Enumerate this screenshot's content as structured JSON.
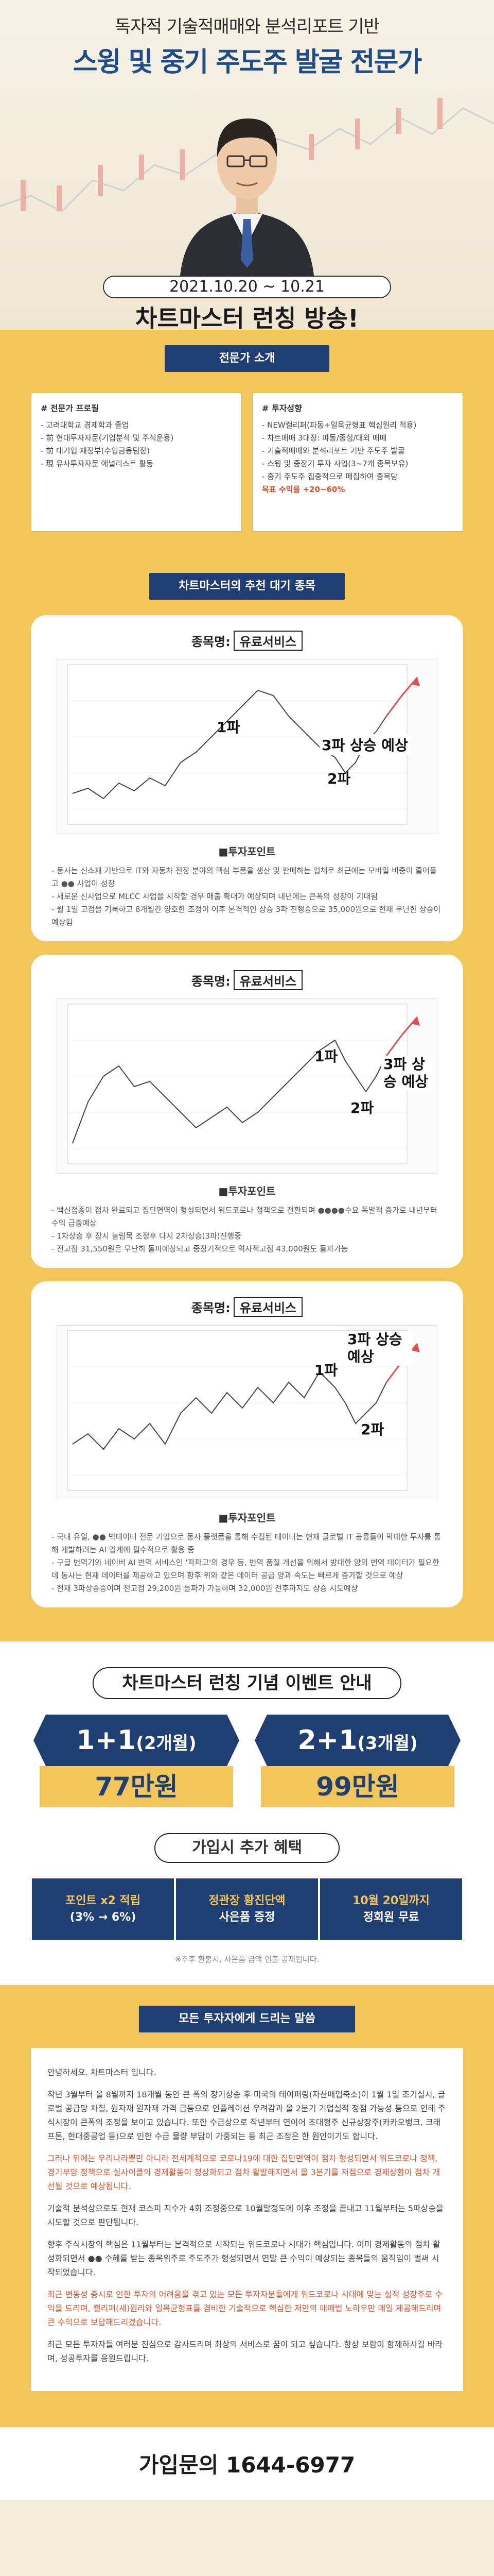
{
  "hero": {
    "headline1": "독자적 기술적매매와 분석리포트 기반",
    "headline2": "스윙 및 중기 주도주 발굴 전문가",
    "date_range": "2021.10.20 ~ 10.21",
    "subtitle": "차트마스터 런칭 방송!"
  },
  "profile": {
    "section_label": "전문가 소개",
    "left_title": "# 전문가 프로필",
    "left_items": [
      "- 고려대학교 경제학과 졸업",
      "- 前 현대투자자문(기업분석 및 주식운용)",
      "- 前 대기업 재정부(수입금융팀장)",
      "- 現 유사투자자문 애널리스트 활동"
    ],
    "right_title": "# 투자성향",
    "right_items": [
      "- NEW캘리퍼(파동+일목균형표 핵심원리 적용)",
      "- 차트매매 3대장: 파동/종심/대외 매매",
      "- 기술적매매와 분석리포트 기반 주도주 발굴",
      "- 스윙 및 중장기 투자 사업(3~7개 종목보유)",
      "- 중기 주도주 집중적으로 매집하여 종목당",
      "목표 수익률 +20~60%"
    ]
  },
  "recommend": {
    "section_label": "차트마스터의 추천 대기 종목",
    "cards": [
      {
        "tag_prefix": "종목명:",
        "tag_value": "유료서비스",
        "label_1": "1파",
        "label_2": "2파",
        "label_3": "3파 상승 예상",
        "point_title": "■투자포인트",
        "points": [
          "- 동사는 신소재 기반으로 IT와 자동차 전장 분야의 핵심 부품을 생산 및 판매하는 업체로 최근에는 모바일 비중이 줄어들고 ●● 사업이 성장",
          "- 새로운 신사업으로 MLCC 사업을 시작할 경우 매출 확대가 예상되며 내년에는 큰폭의 성장이 기대됨",
          "- 월 1일 고점을 기록하고 8개월간 양호한 조정이 이후 본격적인 상승 3파 진행중으로 35,000원으로 현재 무난한 상승이 예상됨"
        ]
      },
      {
        "tag_prefix": "종목명:",
        "tag_value": "유료서비스",
        "label_1": "1파",
        "label_2": "2파",
        "label_3": "3파 상승 예상",
        "point_title": "■투자포인트",
        "points": [
          "- 백신접종이 점차 완료되고 집단면역이 형성되면서 위드코로나 정책으로 전환되며 ●●●●수요 폭발적 증가로 내년부터 수익 급증예상",
          "- 1차상승 후 장시 눌림목 조정후 다시 2차상승(3파)진행중",
          "- 전고점 31,550원은 무난히 돌파예상되고 중장기적으로 역사적고점 43,000원도 돌파가능"
        ]
      },
      {
        "tag_prefix": "종목명:",
        "tag_value": "유료서비스",
        "label_1": "1파",
        "label_2": "2파",
        "label_3": "3파 상승 예상",
        "point_title": "■투자포인트",
        "points": [
          "- 국내 유일, ●● 빅데이터 전문 기업으로 동사 플랫폼을 통해 수집된 데이터는 현재 글로벌 IT 공룡들이 막대한 투자를 통해 개발하려는 AI 업계에 필수적으로 활용 중",
          "- 구글 번역기와 네이버 AI 번역 서비스인 '파파고'의 경우 등, 번역 품질 개선을 위해서 방대한 양의 번역 데이터가 필요한데 동사는 현재 데이터를 제공하고 있으며 향후 위와 같은 데이터 공급 양과 속도는 빠르게 증가할 것으로 예상",
          "- 현재 3파상승중이며 전고점 29,200원 돌파가 가능하며 32,000원 전후까지도 상승 시도예상"
        ]
      }
    ]
  },
  "event": {
    "title": "차트마스터 런칭 기념 이벤트 안내",
    "offers": [
      {
        "plan": "1+1",
        "period": "(2개월)",
        "price": "77만원"
      },
      {
        "plan": "2+1",
        "period": "(3개월)",
        "price": "99만원"
      }
    ],
    "benefit_title": "가입시 추가 혜택",
    "benefits": [
      {
        "line1": "포인트 x2 적립",
        "line2": "(3% → 6%)"
      },
      {
        "line1": "정관장 황진단액",
        "line2": "사은품 증정"
      },
      {
        "line1": "10월 20일까지",
        "line2": "정회원 무료"
      }
    ],
    "note": "※추후 환불시, 사은품 금액 인출 공제됩니다."
  },
  "message": {
    "section_label": "모든 투자자에게 드리는 말씀",
    "paragraphs": [
      "안녕하세요. 차트마스터 입니다.",
      "작년 3월부터 올 8월까지 18개월 동안 큰 폭의 장기상승 후 미국의 테이퍼링(자산매입축소)이 1월 1일 조기실시, 글로벌 공급망 차질, 원자재 원자재 가격 급등으로 인플레이션 우려감과 올 2분기 기업실적 정점 가능성 등으로 인해 주식시장이 큰폭의 조정을 보이고 있습니다. 또한 수급상으로 작년부터 연이어 초대형주 신규상장주(카카오뱅크, 크래프톤, 현대중공업 등)으로 인한 수급 물량 부담이 가중되는 등 최근 조정은 한 원인이기도 합니다.",
      "그러나 위에는 우리나라뿐만 아니라 전세계적으로 코로나19에 대한 집단면역이 점차 형성되면서 위드코로나 정책, 경기부양 정책으로 실사이클의 경제활동이 정상화되고 점차 활발해지면서 올 3분기를 저점으로 경제상황이 점차 개선될 것으로 예상됩니다.",
      "기술적 분석상으로도 현재 코스피 지수가 4회 조정중으로 10월말정도에 이후 조정을 끝내고 11월부터는 5파상승을 시도할 것으로 판단됩니다.",
      "향후 주식시장의 핵심은 11월부터는 본격적으로 시작되는 위드코로나 시대가 핵심입니다. 이미 경제활동의 점차 활성화되면서 ●● 수혜를 받는 종목위주로 주도주가 형성되면서 연말 큰 수익이 예상되는 종목들의 움직임이 벌써 시작되었습니다.",
      "최근 변동성 증시로 인한 투자의 어려움을 겪고 있는 모든 투자자분들에게 위드코로나 시대에 맞는 실적 성장주로 수익을 드리며, 캘리퍼(새)원리와 일목균형표를 겸비한 기술적으로 핵심한 저만의 매매법 노하우만 매일 제공해드리며 큰 수익으로 보답해드리겠습니다.",
      "최근 모든 투자자들 여러분 진심으로 감사드리며 최상의 서비스로 꿈이 되고 싶습니다. 항상 보람이 함께하시길 바라며, 성공투자를 응원드립니다."
    ]
  },
  "contact": {
    "label": "가입문의 1644-6977"
  }
}
